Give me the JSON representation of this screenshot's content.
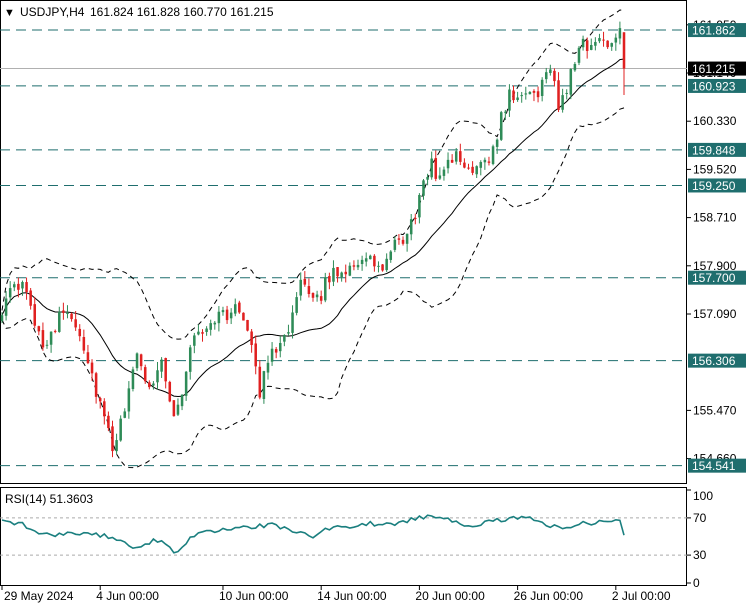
{
  "header": {
    "arrow_glyph": "▼",
    "symbol": "USDJPY,H4",
    "ohlc": "161.824 161.828 160.770 161.215"
  },
  "rsi_header": "RSI(14) 51.3603",
  "colors": {
    "bull": "#2e8b57",
    "bear": "#e02020",
    "level_line": "#1f6e6e",
    "rsi_line": "#1a7f7f",
    "band": "#000000",
    "current_bg": "#000000",
    "level_bg": "#1f6e6e"
  },
  "chart_data": [
    {
      "type": "candlestick",
      "title": "USDJPY,H4",
      "ylim": [
        154.3,
        162.3
      ],
      "y_ticks": [
        161.95,
        161.14,
        160.33,
        159.52,
        158.71,
        157.9,
        157.09,
        155.47,
        154.66
      ],
      "y_tick_labels": [
        "161.950",
        "161.140",
        "160.330",
        "159.520",
        "158.710",
        "157.900",
        "157.090",
        "155.470",
        "154.660"
      ],
      "x_tick_labels": [
        "29 May 2024",
        "4 Jun 00:00",
        "10 Jun 00:00",
        "14 Jun 00:00",
        "20 Jun 00:00",
        "26 Jun 00:00",
        "2 Jul 00:00"
      ],
      "x_tick_candle_index": [
        0,
        24,
        54,
        78,
        102,
        126,
        150
      ],
      "horizontal_levels": [
        {
          "value": 161.862,
          "label": "161.862"
        },
        {
          "value": 160.923,
          "label": "160.923"
        },
        {
          "value": 159.848,
          "label": "159.848"
        },
        {
          "value": 159.25,
          "label": "159.250"
        },
        {
          "value": 157.7,
          "label": "157.700"
        },
        {
          "value": 156.306,
          "label": "156.306"
        },
        {
          "value": 154.541,
          "label": "154.541"
        }
      ],
      "current_price": {
        "value": 161.215,
        "label": "161.215"
      },
      "candle_count": 153,
      "waypoints": [
        [
          0,
          157.2
        ],
        [
          3,
          157.5
        ],
        [
          5,
          157.55
        ],
        [
          8,
          157.0
        ],
        [
          10,
          156.6
        ],
        [
          13,
          156.9
        ],
        [
          16,
          157.2
        ],
        [
          19,
          156.8
        ],
        [
          21,
          156.3
        ],
        [
          23,
          155.8
        ],
        [
          25,
          155.3
        ],
        [
          27,
          154.8
        ],
        [
          29,
          155.2
        ],
        [
          31,
          155.9
        ],
        [
          33,
          156.3
        ],
        [
          36,
          155.9
        ],
        [
          39,
          156.3
        ],
        [
          42,
          155.4
        ],
        [
          44,
          155.7
        ],
        [
          46,
          156.6
        ],
        [
          49,
          156.8
        ],
        [
          52,
          157.05
        ],
        [
          55,
          157.1
        ],
        [
          58,
          157.15
        ],
        [
          60,
          156.9
        ],
        [
          62,
          156.3
        ],
        [
          63,
          155.7
        ],
        [
          65,
          156.3
        ],
        [
          68,
          156.7
        ],
        [
          71,
          157.0
        ],
        [
          73,
          157.6
        ],
        [
          75,
          157.3
        ],
        [
          78,
          157.45
        ],
        [
          81,
          157.8
        ],
        [
          84,
          157.85
        ],
        [
          87,
          158.0
        ],
        [
          90,
          157.95
        ],
        [
          93,
          157.85
        ],
        [
          96,
          158.2
        ],
        [
          99,
          158.4
        ],
        [
          101,
          158.8
        ],
        [
          103,
          159.2
        ],
        [
          105,
          159.7
        ],
        [
          107,
          159.3
        ],
        [
          109,
          159.75
        ],
        [
          111,
          159.7
        ],
        [
          114,
          159.5
        ],
        [
          117,
          159.7
        ],
        [
          120,
          159.8
        ],
        [
          122,
          160.4
        ],
        [
          124,
          160.8
        ],
        [
          126,
          160.6
        ],
        [
          128,
          160.9
        ],
        [
          130,
          160.7
        ],
        [
          132,
          161.0
        ],
        [
          134,
          161.2
        ],
        [
          136,
          160.6
        ],
        [
          138,
          160.9
        ],
        [
          140,
          161.4
        ],
        [
          142,
          161.7
        ],
        [
          144,
          161.55
        ],
        [
          146,
          161.7
        ],
        [
          148,
          161.65
        ],
        [
          150,
          161.85
        ],
        [
          151,
          161.92
        ],
        [
          152,
          161.215
        ]
      ]
    },
    {
      "type": "line",
      "title": "RSI(14) 51.3603",
      "ylim": [
        0,
        100
      ],
      "y_ticks": [
        100,
        70,
        30,
        0
      ],
      "reference_levels": [
        70,
        30
      ],
      "series": [
        {
          "values": [
            [
              0,
              66
            ],
            [
              4,
              64
            ],
            [
              7,
              60
            ],
            [
              10,
              53
            ],
            [
              14,
              52
            ],
            [
              18,
              54
            ],
            [
              22,
              53
            ],
            [
              26,
              50
            ],
            [
              29,
              47
            ],
            [
              31,
              42
            ],
            [
              33,
              37
            ],
            [
              35,
              40
            ],
            [
              37,
              45
            ],
            [
              40,
              42
            ],
            [
              42,
              33
            ],
            [
              44,
              36
            ],
            [
              46,
              50
            ],
            [
              50,
              55
            ],
            [
              54,
              58
            ],
            [
              58,
              60
            ],
            [
              62,
              61
            ],
            [
              66,
              62
            ],
            [
              70,
              58
            ],
            [
              74,
              52
            ],
            [
              76,
              48
            ],
            [
              78,
              56
            ],
            [
              82,
              60
            ],
            [
              86,
              62
            ],
            [
              90,
              64
            ],
            [
              94,
              63
            ],
            [
              98,
              66
            ],
            [
              102,
              70
            ],
            [
              106,
              72
            ],
            [
              110,
              68
            ],
            [
              114,
              62
            ],
            [
              118,
              64
            ],
            [
              122,
              68
            ],
            [
              126,
              70
            ],
            [
              130,
              68
            ],
            [
              134,
              62
            ],
            [
              138,
              60
            ],
            [
              142,
              64
            ],
            [
              146,
              66
            ],
            [
              149,
              68
            ],
            [
              151,
              67
            ],
            [
              152,
              51.36
            ]
          ]
        }
      ]
    }
  ]
}
